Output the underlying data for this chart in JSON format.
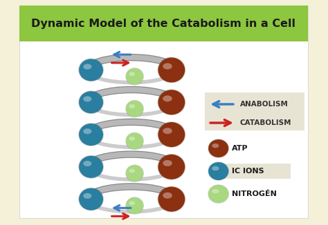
{
  "bg_color": "#f5f0d8",
  "title_bar_color": "#8dc63f",
  "title_text": "Dynamic Model of the Catabolism in a Cell",
  "title_color": "#1a1a1a",
  "title_fontsize": 11.5,
  "white_card_color": "#ffffff",
  "legend_items": [
    {
      "type": "arrow_left",
      "color": "#3a7fc1",
      "label": "ANABOLISM"
    },
    {
      "type": "arrow_right",
      "color": "#cc2222",
      "label": "CATABOLISM"
    },
    {
      "type": "circle",
      "color": "#8b3010",
      "label": "ATP"
    },
    {
      "type": "circle",
      "color": "#2a7ea0",
      "label": "IC IONS"
    },
    {
      "type": "circle",
      "color": "#a8d880",
      "label": "NITROGÉN"
    }
  ],
  "legend_bg_arrows": "#e8e4d4",
  "legend_bg_ic": "#e8e4d4",
  "helix_color": "#b8b8b8",
  "helix_edge": "#888888",
  "atp_color": "#8b3010",
  "ic_color": "#2a7ea0",
  "n_color": "#a8d880",
  "arrow_blue": "#3a7fc1",
  "arrow_red": "#cc2222",
  "num_turns": 5
}
